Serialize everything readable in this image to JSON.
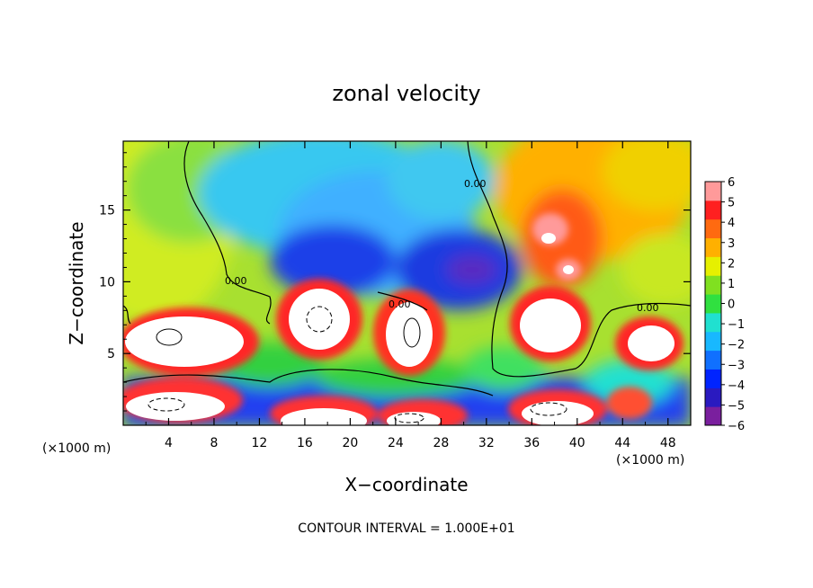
{
  "chart_data": {
    "type": "heatmap",
    "title": "zonal velocity",
    "xlabel": "X−coordinate",
    "ylabel": "Z−coordinate",
    "x_unit_label": "(×1000 m)",
    "y_unit_label": "(×1000 m)",
    "x_ticks": [
      "4",
      "8",
      "12",
      "16",
      "20",
      "24",
      "28",
      "32",
      "36",
      "40",
      "44",
      "48"
    ],
    "y_ticks": [
      "5",
      "10",
      "15"
    ],
    "xlim": [
      0,
      50
    ],
    "ylim": [
      0,
      19.8
    ],
    "colorbar": {
      "ticks": [
        "6",
        "5",
        "4",
        "3",
        "2",
        "1",
        "0",
        "−1",
        "−2",
        "−3",
        "−4",
        "−5",
        "−6"
      ],
      "range": [
        -6,
        6
      ],
      "colors_low_to_high": [
        "#7a1f9e",
        "#2a1ac0",
        "#0024ff",
        "#1070ff",
        "#18b8ff",
        "#20e0d0",
        "#30e040",
        "#80e020",
        "#e6f000",
        "#ffb000",
        "#ff6a10",
        "#ff2020",
        "#ff9a9a"
      ],
      "saturated_color": "#ffffff"
    },
    "contour_labels": [
      "0.00",
      "0.00",
      "0.00",
      "0.00"
    ],
    "footer": "CONTOUR INTERVAL = 1.000E+01"
  }
}
